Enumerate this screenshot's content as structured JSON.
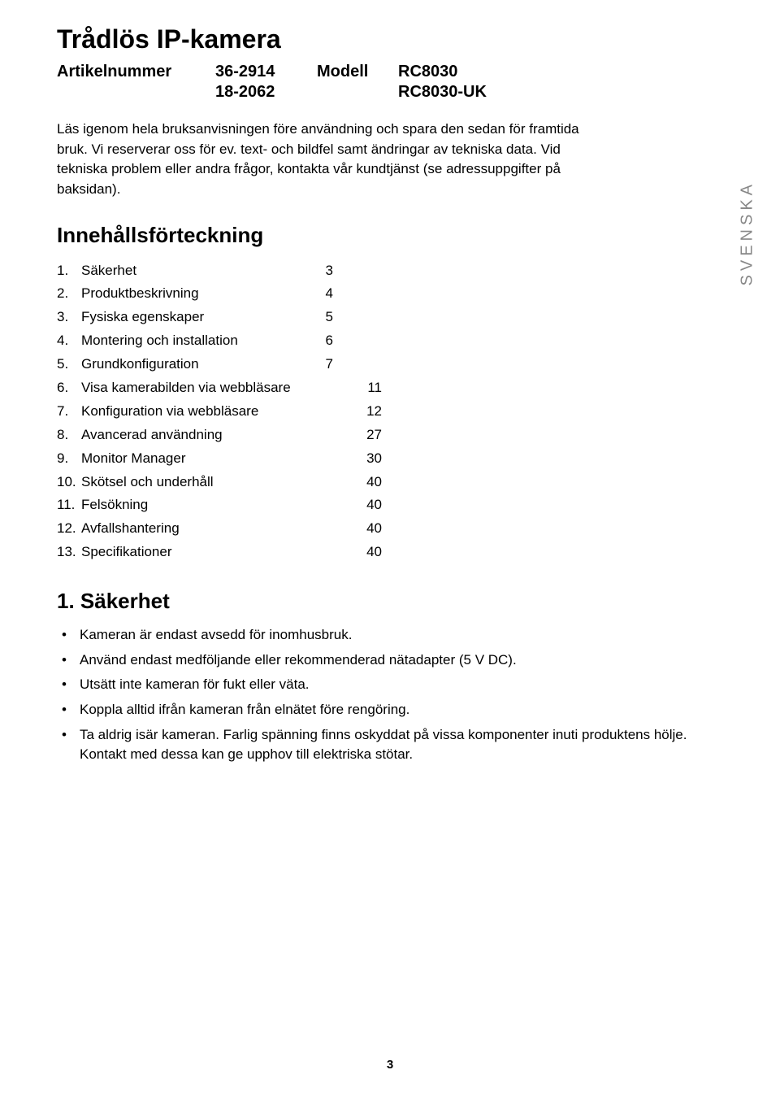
{
  "title": "Trådlös IP-kamera",
  "article": {
    "label": "Artikelnummer",
    "value1": "36-2914",
    "value2": "18-2062",
    "model_label": "Modell",
    "model1": "RC8030",
    "model2": "RC8030-UK"
  },
  "intro": "Läs igenom hela bruksanvisningen före användning och spara den sedan för framtida bruk. Vi reserverar oss för ev. text- och bildfel samt ändringar av tekniska data. Vid tekniska problem eller andra frågor, kontakta vår kundtjänst (se adressuppgifter på baksidan).",
  "side_label": "SVENSKA",
  "toc": {
    "heading": "Innehållsförteckning",
    "items": [
      {
        "num": "1.",
        "label": "Säkerhet",
        "page": "3"
      },
      {
        "num": "2.",
        "label": "Produktbeskrivning",
        "page": "4"
      },
      {
        "num": "3.",
        "label": "Fysiska egenskaper",
        "page": "5"
      },
      {
        "num": "4.",
        "label": "Montering och installation",
        "page": "6"
      },
      {
        "num": "5.",
        "label": "Grundkonfiguration",
        "page": "7"
      },
      {
        "num": "6.",
        "label": "Visa kamerabilden via webbläsare",
        "page": "11"
      },
      {
        "num": "7.",
        "label": "Konfiguration via webbläsare",
        "page": "12"
      },
      {
        "num": "8.",
        "label": "Avancerad användning",
        "page": "27"
      },
      {
        "num": "9.",
        "label": "Monitor Manager",
        "page": "30"
      },
      {
        "num": "10.",
        "label": "Skötsel och underhåll",
        "page": "40"
      },
      {
        "num": "11.",
        "label": "Felsökning",
        "page": "40"
      },
      {
        "num": "12.",
        "label": "Avfallshantering",
        "page": "40"
      },
      {
        "num": "13.",
        "label": "Specifikationer",
        "page": "40"
      }
    ]
  },
  "section1": {
    "heading": "1. Säkerhet",
    "bullets": [
      "Kameran är endast avsedd för inomhusbruk.",
      "Använd endast medföljande eller rekommenderad nätadapter (5 V DC).",
      "Utsätt inte kameran för fukt eller väta.",
      "Koppla alltid ifrån kameran från elnätet före rengöring.",
      "Ta aldrig isär kameran. Farlig spänning finns oskyddat på vissa komponenter inuti produktens hölje. Kontakt med dessa kan ge upphov till elektriska stötar."
    ]
  },
  "page_number": "3",
  "colors": {
    "text": "#000000",
    "side_label": "#888888",
    "background": "#ffffff"
  },
  "typography": {
    "title_fontsize": 32,
    "heading_fontsize": 26,
    "subheading_fontsize": 20,
    "body_fontsize": 17,
    "page_num_fontsize": 15
  }
}
